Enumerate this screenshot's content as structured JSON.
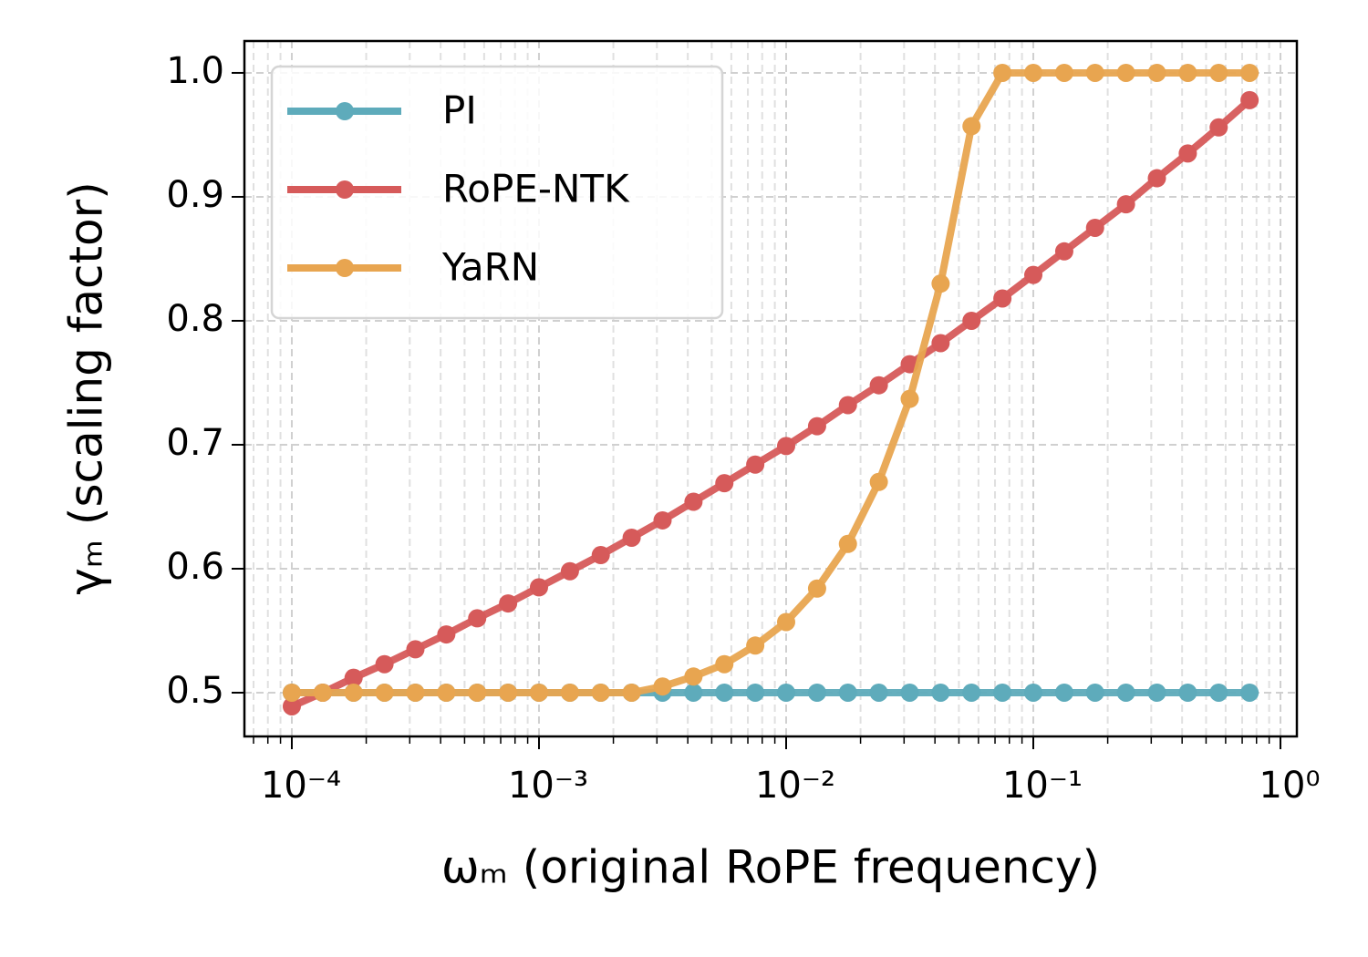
{
  "chart_data": {
    "type": "line",
    "xlabel": "ωₘ (original RoPE frequency)",
    "ylabel": "γₘ (scaling factor)",
    "x": [
      0.0001,
      0.0001334,
      0.0001778,
      0.0002371,
      0.0003162,
      0.0004217,
      0.0005623,
      0.0007499,
      0.001,
      0.001334,
      0.001778,
      0.002371,
      0.003162,
      0.004217,
      0.005623,
      0.007499,
      0.01,
      0.01334,
      0.01778,
      0.02371,
      0.03162,
      0.04217,
      0.05623,
      0.07499,
      0.1,
      0.1334,
      0.1778,
      0.2371,
      0.3162,
      0.4217,
      0.5623,
      0.7499
    ],
    "series": [
      {
        "name": "PI",
        "color": "#5eabbb",
        "values": [
          0.5,
          0.5,
          0.5,
          0.5,
          0.5,
          0.5,
          0.5,
          0.5,
          0.5,
          0.5,
          0.5,
          0.5,
          0.5,
          0.5,
          0.5,
          0.5,
          0.5,
          0.5,
          0.5,
          0.5,
          0.5,
          0.5,
          0.5,
          0.5,
          0.5,
          0.5,
          0.5,
          0.5,
          0.5,
          0.5,
          0.5,
          0.5
        ]
      },
      {
        "name": "RoPE-NTK",
        "color": "#d65a5a",
        "values": [
          0.489,
          0.5,
          0.512,
          0.523,
          0.535,
          0.547,
          0.56,
          0.572,
          0.585,
          0.598,
          0.611,
          0.625,
          0.639,
          0.654,
          0.669,
          0.684,
          0.699,
          0.715,
          0.732,
          0.748,
          0.765,
          0.782,
          0.8,
          0.818,
          0.837,
          0.856,
          0.875,
          0.894,
          0.915,
          0.935,
          0.956,
          0.978
        ]
      },
      {
        "name": "YaRN",
        "color": "#e8a550",
        "values": [
          0.5,
          0.5,
          0.5,
          0.5,
          0.5,
          0.5,
          0.5,
          0.5,
          0.5,
          0.5,
          0.5,
          0.5,
          0.505,
          0.513,
          0.523,
          0.538,
          0.557,
          0.584,
          0.62,
          0.67,
          0.737,
          0.83,
          0.957,
          1.0,
          1.0,
          1.0,
          1.0,
          1.0,
          1.0,
          1.0,
          1.0,
          1.0
        ]
      }
    ],
    "xscale": "log",
    "xlim": [
      6.43e-05,
      1.165
    ],
    "ylim": [
      0.4647,
      1.0257
    ],
    "xticks": [
      {
        "value": 0.0001,
        "label": "10⁻⁴"
      },
      {
        "value": 0.001,
        "label": "10⁻³"
      },
      {
        "value": 0.01,
        "label": "10⁻²"
      },
      {
        "value": 0.1,
        "label": "10⁻¹"
      },
      {
        "value": 1,
        "label": "10⁰"
      }
    ],
    "yticks": [
      0.5,
      0.6,
      0.7,
      0.8,
      0.9,
      {
        "value": 1,
        "label": "1.0"
      }
    ],
    "grid": true,
    "legend": "upper left"
  }
}
